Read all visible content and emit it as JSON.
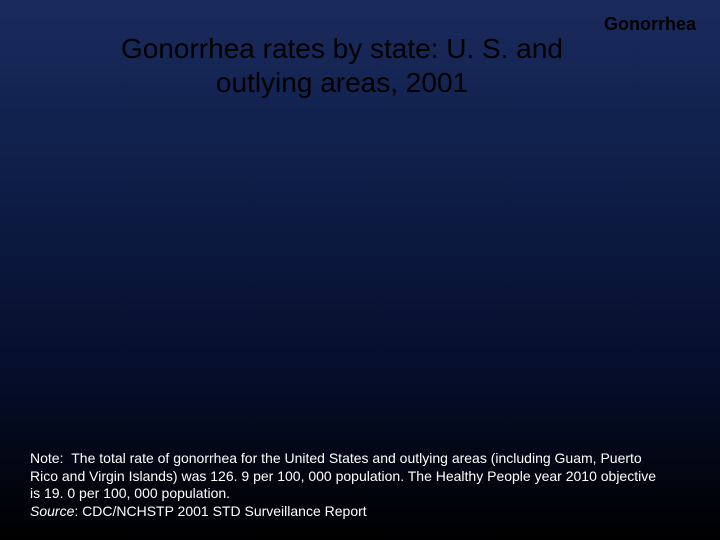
{
  "slide": {
    "background_gradient": [
      "#1a2a5c",
      "#0f1f4a",
      "#050d2a",
      "#000000"
    ],
    "header_label": "Gonorrhea",
    "title": "Gonorrhea rates by state: U. S. and outlying areas, 2001",
    "title_fontsize": 28,
    "title_color": "#000000",
    "header_fontsize": 18,
    "footer": {
      "note_prefix": "Note:",
      "note_text": "The total rate of gonorrhea for the United States and outlying areas (including Guam, Puerto Rico and Virgin Islands) was 126. 9 per 100, 000 population. The Healthy People year 2010 objective is 19. 0 per 100, 000 population.",
      "source_label": "Source",
      "source_text": ": CDC/NCHSTP 2001 STD Surveillance Report",
      "fontsize": 14,
      "color": "#ffffff"
    }
  }
}
